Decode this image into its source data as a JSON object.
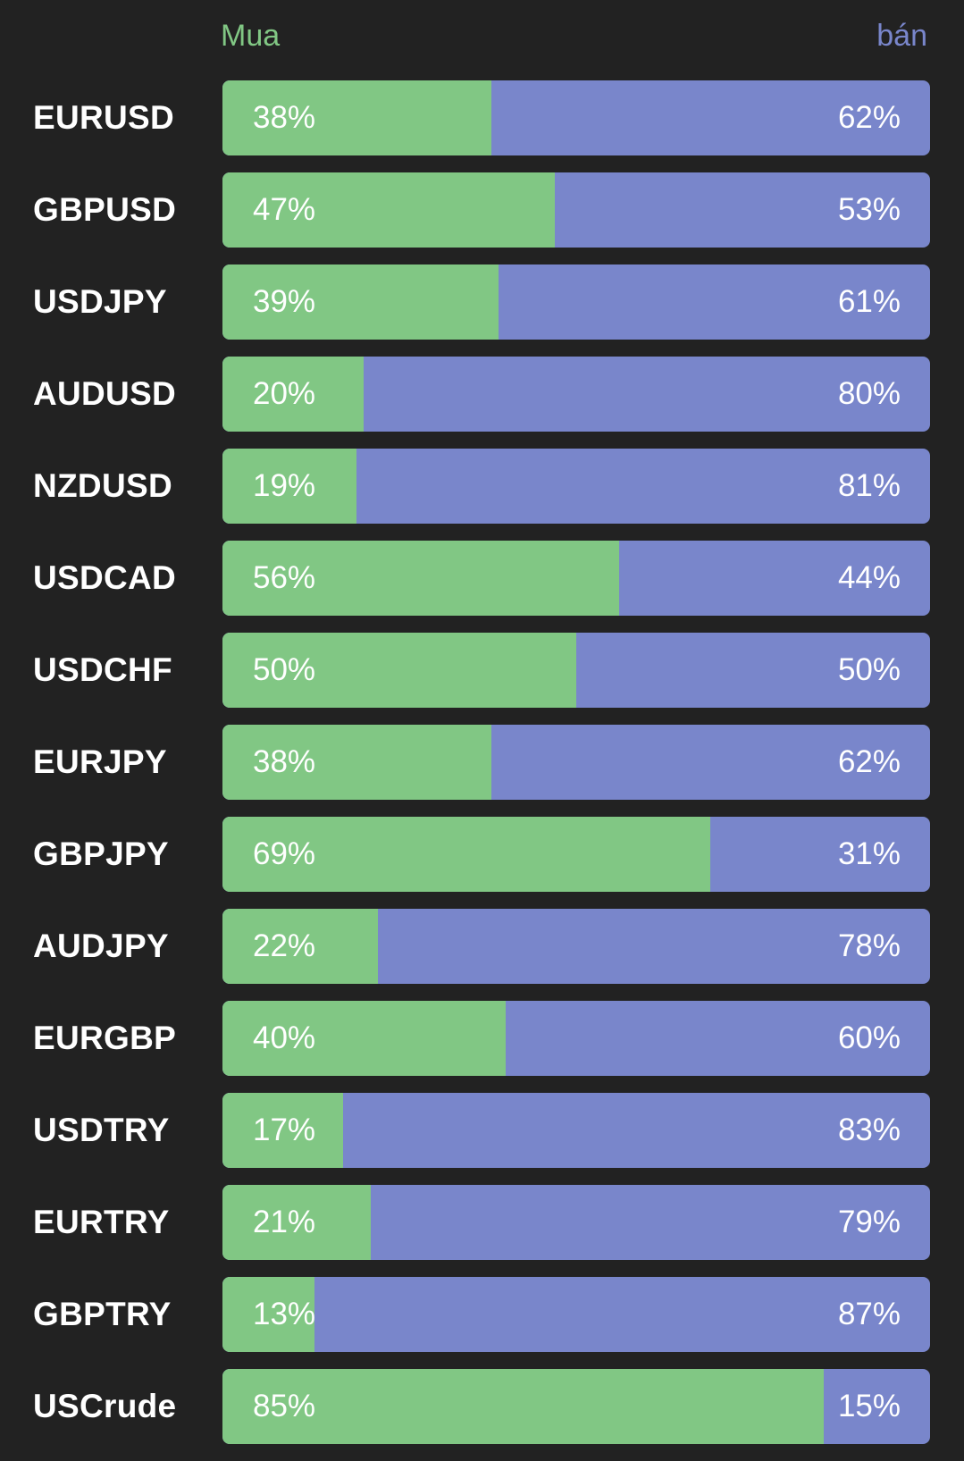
{
  "header": {
    "buy_label": "Mua",
    "sell_label": "bán"
  },
  "colors": {
    "background": "#222222",
    "buy": "#81c784",
    "sell": "#7986cb",
    "text": "#ffffff"
  },
  "pairs": [
    {
      "symbol": "EURUSD",
      "buy_pct": 38,
      "buy_label": "38%",
      "sell_label": "62%"
    },
    {
      "symbol": "GBPUSD",
      "buy_pct": 47,
      "buy_label": "47%",
      "sell_label": "53%"
    },
    {
      "symbol": "USDJPY",
      "buy_pct": 39,
      "buy_label": "39%",
      "sell_label": "61%"
    },
    {
      "symbol": "AUDUSD",
      "buy_pct": 20,
      "buy_label": "20%",
      "sell_label": "80%"
    },
    {
      "symbol": "NZDUSD",
      "buy_pct": 19,
      "buy_label": "19%",
      "sell_label": "81%"
    },
    {
      "symbol": "USDCAD",
      "buy_pct": 56,
      "buy_label": "56%",
      "sell_label": "44%"
    },
    {
      "symbol": "USDCHF",
      "buy_pct": 50,
      "buy_label": "50%",
      "sell_label": "50%"
    },
    {
      "symbol": "EURJPY",
      "buy_pct": 38,
      "buy_label": "38%",
      "sell_label": "62%"
    },
    {
      "symbol": "GBPJPY",
      "buy_pct": 69,
      "buy_label": "69%",
      "sell_label": "31%"
    },
    {
      "symbol": "AUDJPY",
      "buy_pct": 22,
      "buy_label": "22%",
      "sell_label": "78%"
    },
    {
      "symbol": "EURGBP",
      "buy_pct": 40,
      "buy_label": "40%",
      "sell_label": "60%"
    },
    {
      "symbol": "USDTRY",
      "buy_pct": 17,
      "buy_label": "17%",
      "sell_label": "83%"
    },
    {
      "symbol": "EURTRY",
      "buy_pct": 21,
      "buy_label": "21%",
      "sell_label": "79%"
    },
    {
      "symbol": "GBPTRY",
      "buy_pct": 13,
      "buy_label": "13%",
      "sell_label": "87%"
    },
    {
      "symbol": "USCrude",
      "buy_pct": 85,
      "buy_label": "85%",
      "sell_label": "15%"
    }
  ]
}
